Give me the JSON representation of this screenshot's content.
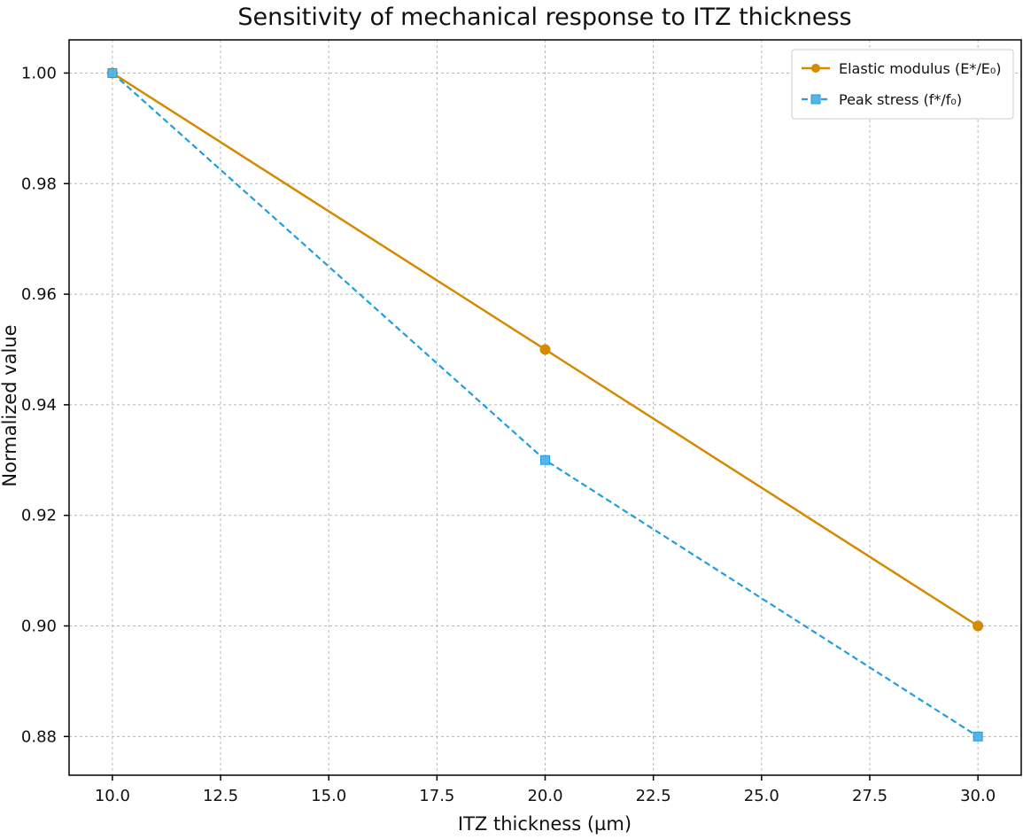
{
  "chart_data": {
    "type": "line",
    "title": "Sensitivity of mechanical response to ITZ thickness",
    "xlabel": "ITZ thickness (µm)",
    "ylabel": "Normalized value",
    "xlim": [
      9.0,
      31.0
    ],
    "ylim": [
      0.873,
      1.006
    ],
    "xticks": [
      10.0,
      12.5,
      15.0,
      17.5,
      20.0,
      22.5,
      25.0,
      27.5,
      30.0
    ],
    "xtick_labels": [
      "10.0",
      "12.5",
      "15.0",
      "17.5",
      "20.0",
      "22.5",
      "25.0",
      "27.5",
      "30.0"
    ],
    "yticks": [
      0.88,
      0.9,
      0.92,
      0.94,
      0.96,
      0.98,
      1.0
    ],
    "ytick_labels": [
      "0.88",
      "0.90",
      "0.92",
      "0.94",
      "0.96",
      "0.98",
      "1.00"
    ],
    "grid": true,
    "legend_position": "top-right",
    "series": [
      {
        "name": "Elastic modulus (E*/E₀)",
        "x": [
          10,
          20,
          30
        ],
        "y": [
          1.0,
          0.95,
          0.9
        ],
        "color": "#d68a00",
        "line_style": "solid",
        "marker": "circle"
      },
      {
        "name": "Peak stress (f*/f₀)",
        "x": [
          10,
          20,
          30
        ],
        "y": [
          1.0,
          0.93,
          0.88
        ],
        "color": "#1f9fdc",
        "line_style": "dashed",
        "marker": "square"
      }
    ]
  }
}
